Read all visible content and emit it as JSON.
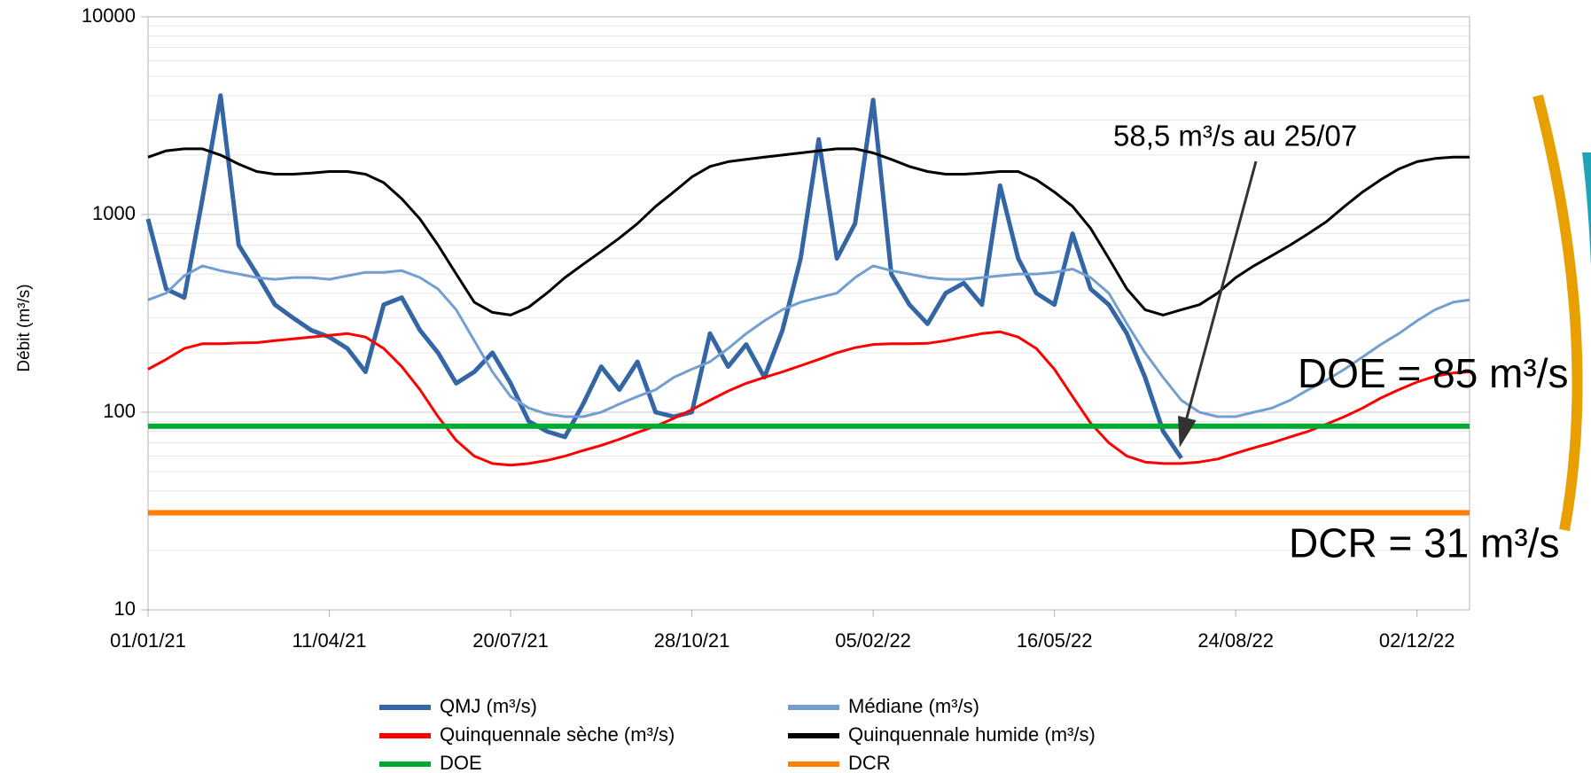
{
  "chart_data": {
    "type": "line",
    "y_label": "Débit (m³/s)",
    "log_scale": true,
    "grid": true,
    "legend": "bottom",
    "xlim": [
      "01/01/21",
      "31/12/22"
    ],
    "xticks": [
      "01/01/21",
      "11/04/21",
      "20/07/21",
      "28/10/21",
      "05/02/22",
      "16/05/22",
      "24/08/22",
      "02/12/22"
    ],
    "ylim": [
      10,
      10000
    ],
    "yticks": [
      10,
      100,
      1000,
      10000
    ],
    "x": [
      "01/01/21",
      "11/01/21",
      "21/01/21",
      "31/01/21",
      "10/02/21",
      "20/02/21",
      "02/03/21",
      "12/03/21",
      "22/03/21",
      "01/04/21",
      "11/04/21",
      "21/04/21",
      "01/05/21",
      "11/05/21",
      "21/05/21",
      "31/05/21",
      "10/06/21",
      "20/06/21",
      "30/06/21",
      "10/07/21",
      "20/07/21",
      "30/07/21",
      "09/08/21",
      "19/08/21",
      "29/08/21",
      "08/09/21",
      "18/09/21",
      "28/09/21",
      "08/10/21",
      "18/10/21",
      "28/10/21",
      "07/11/21",
      "17/11/21",
      "27/11/21",
      "07/12/21",
      "17/12/21",
      "27/12/21",
      "06/01/22",
      "16/01/22",
      "26/01/22",
      "05/02/22",
      "15/02/22",
      "25/02/22",
      "07/03/22",
      "17/03/22",
      "27/03/22",
      "06/04/22",
      "16/04/22",
      "26/04/22",
      "06/05/22",
      "16/05/22",
      "26/05/22",
      "05/06/22",
      "15/06/22",
      "25/06/22",
      "05/07/22",
      "15/07/22",
      "25/07/22",
      "04/08/22",
      "14/08/22",
      "24/08/22",
      "03/09/22",
      "13/09/22",
      "23/09/22",
      "03/10/22",
      "13/10/22",
      "23/10/22",
      "02/11/22",
      "12/11/22",
      "22/11/22",
      "02/12/22",
      "12/12/22",
      "22/12/22",
      "31/12/22"
    ],
    "series": [
      {
        "name": "QMJ (m³/s)",
        "color": "#3465a4",
        "width": 5,
        "values": [
          950,
          420,
          380,
          1200,
          4000,
          700,
          500,
          350,
          300,
          260,
          240,
          210,
          160,
          350,
          380,
          260,
          200,
          140,
          160,
          200,
          140,
          90,
          80,
          75,
          110,
          170,
          130,
          180,
          100,
          95,
          100,
          250,
          170,
          220,
          150,
          260,
          600,
          2400,
          600,
          900,
          3800,
          500,
          350,
          280,
          400,
          450,
          350,
          1400,
          600,
          400,
          350,
          800,
          420,
          350,
          250,
          150,
          80,
          58.5,
          null,
          null,
          null,
          null,
          null,
          null,
          null,
          null,
          null,
          null,
          null,
          null,
          null,
          null,
          null,
          null
        ]
      },
      {
        "name": "Médiane (m³/s)",
        "color": "#729fcf",
        "width": 3,
        "values": [
          370,
          400,
          490,
          550,
          520,
          500,
          480,
          470,
          480,
          480,
          470,
          490,
          510,
          510,
          520,
          480,
          420,
          330,
          230,
          160,
          120,
          105,
          98,
          95,
          95,
          100,
          110,
          120,
          130,
          150,
          165,
          180,
          210,
          250,
          290,
          330,
          360,
          380,
          400,
          480,
          550,
          520,
          500,
          480,
          470,
          470,
          480,
          490,
          500,
          500,
          510,
          530,
          480,
          400,
          280,
          200,
          150,
          115,
          100,
          95,
          95,
          100,
          105,
          115,
          130,
          145,
          165,
          190,
          220,
          250,
          290,
          330,
          360,
          370
        ]
      },
      {
        "name": "Quinquennale sèche (m³/s)",
        "color": "#ff0000",
        "width": 3,
        "values": [
          165,
          185,
          210,
          222,
          222,
          224,
          225,
          230,
          235,
          240,
          245,
          250,
          240,
          210,
          170,
          130,
          95,
          72,
          60,
          55,
          54,
          55,
          57,
          60,
          64,
          68,
          73,
          79,
          85,
          93,
          103,
          115,
          128,
          140,
          150,
          160,
          172,
          185,
          200,
          212,
          220,
          222,
          222,
          223,
          230,
          240,
          250,
          255,
          240,
          210,
          165,
          120,
          88,
          70,
          60,
          56,
          55,
          55,
          56,
          58,
          62,
          66,
          70,
          75,
          80,
          87,
          95,
          105,
          118,
          130,
          142,
          152,
          158,
          160
        ]
      },
      {
        "name": "Quinquennale humide (m³/s)",
        "color": "#000000",
        "width": 3,
        "values": [
          1950,
          2100,
          2150,
          2150,
          2000,
          1800,
          1650,
          1600,
          1600,
          1620,
          1650,
          1650,
          1600,
          1450,
          1200,
          950,
          700,
          500,
          360,
          320,
          310,
          340,
          400,
          480,
          560,
          650,
          760,
          900,
          1100,
          1300,
          1550,
          1750,
          1850,
          1900,
          1950,
          2000,
          2050,
          2100,
          2150,
          2150,
          2050,
          1900,
          1750,
          1650,
          1600,
          1600,
          1620,
          1650,
          1650,
          1500,
          1300,
          1100,
          850,
          600,
          420,
          330,
          310,
          330,
          350,
          400,
          480,
          550,
          620,
          700,
          800,
          920,
          1100,
          1300,
          1500,
          1700,
          1850,
          1920,
          1950,
          1950
        ]
      },
      {
        "name": "DOE",
        "color": "#00a933",
        "width": 6,
        "value": 85
      },
      {
        "name": "DCR",
        "color": "#ff8000",
        "width": 6,
        "value": 31
      }
    ],
    "annotations": [
      {
        "text": "58,5 m³/s au 25/07",
        "x": "25/07/22",
        "y": 58.5
      },
      {
        "text": "DOE = 85 m³/s"
      },
      {
        "text": "DCR = 31 m³/s"
      }
    ]
  }
}
